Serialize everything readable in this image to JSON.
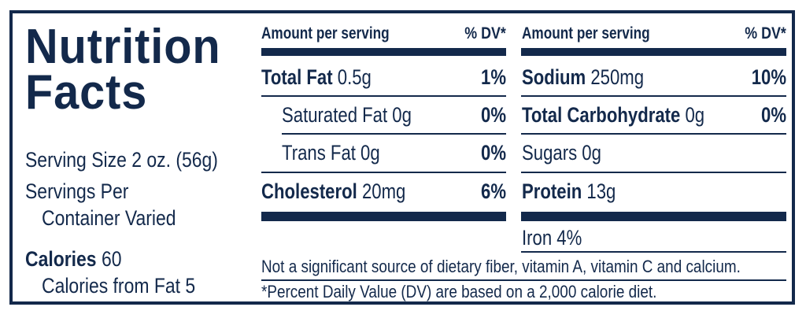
{
  "panel": {
    "title_line1": "Nutrition",
    "title_line2": "Facts",
    "serving_size": "Serving Size 2 oz. (56g)",
    "servings_per_line1": "Servings Per",
    "servings_per_line2": "Container Varied",
    "calories_label": "Calories",
    "calories_value": "60",
    "calories_from_fat": "Calories from Fat 5"
  },
  "left_table": {
    "header_amount": "Amount per serving",
    "header_dv": "% DV*",
    "rows": [
      {
        "label": "Total Fat",
        "value": "0.5g",
        "dv": "1%"
      },
      {
        "label": "Saturated Fat 0g",
        "value": "",
        "dv": "0%"
      },
      {
        "label": "Trans Fat 0g",
        "value": "",
        "dv": "0%"
      },
      {
        "label": "Cholesterol",
        "value": "20mg",
        "dv": "6%"
      }
    ]
  },
  "right_table": {
    "header_amount": "Amount per serving",
    "header_dv": "% DV*",
    "rows": [
      {
        "label": "Sodium",
        "value": "250mg",
        "dv": "10%"
      },
      {
        "label": "Total Carbohydrate",
        "value": "0g",
        "dv": "0%"
      },
      {
        "label": "Sugars 0g",
        "value": "",
        "dv": ""
      },
      {
        "label": "Protein",
        "value": "13g",
        "dv": ""
      }
    ],
    "iron": "Iron 4%"
  },
  "footer": {
    "not_significant": "Not a significant source of dietary fiber, vitamin A, vitamin C and calcium.",
    "dv_note": "*Percent Daily Value (DV) are based on a 2,000 calorie diet."
  },
  "colors": {
    "ink": "#13294b",
    "background": "#ffffff"
  }
}
